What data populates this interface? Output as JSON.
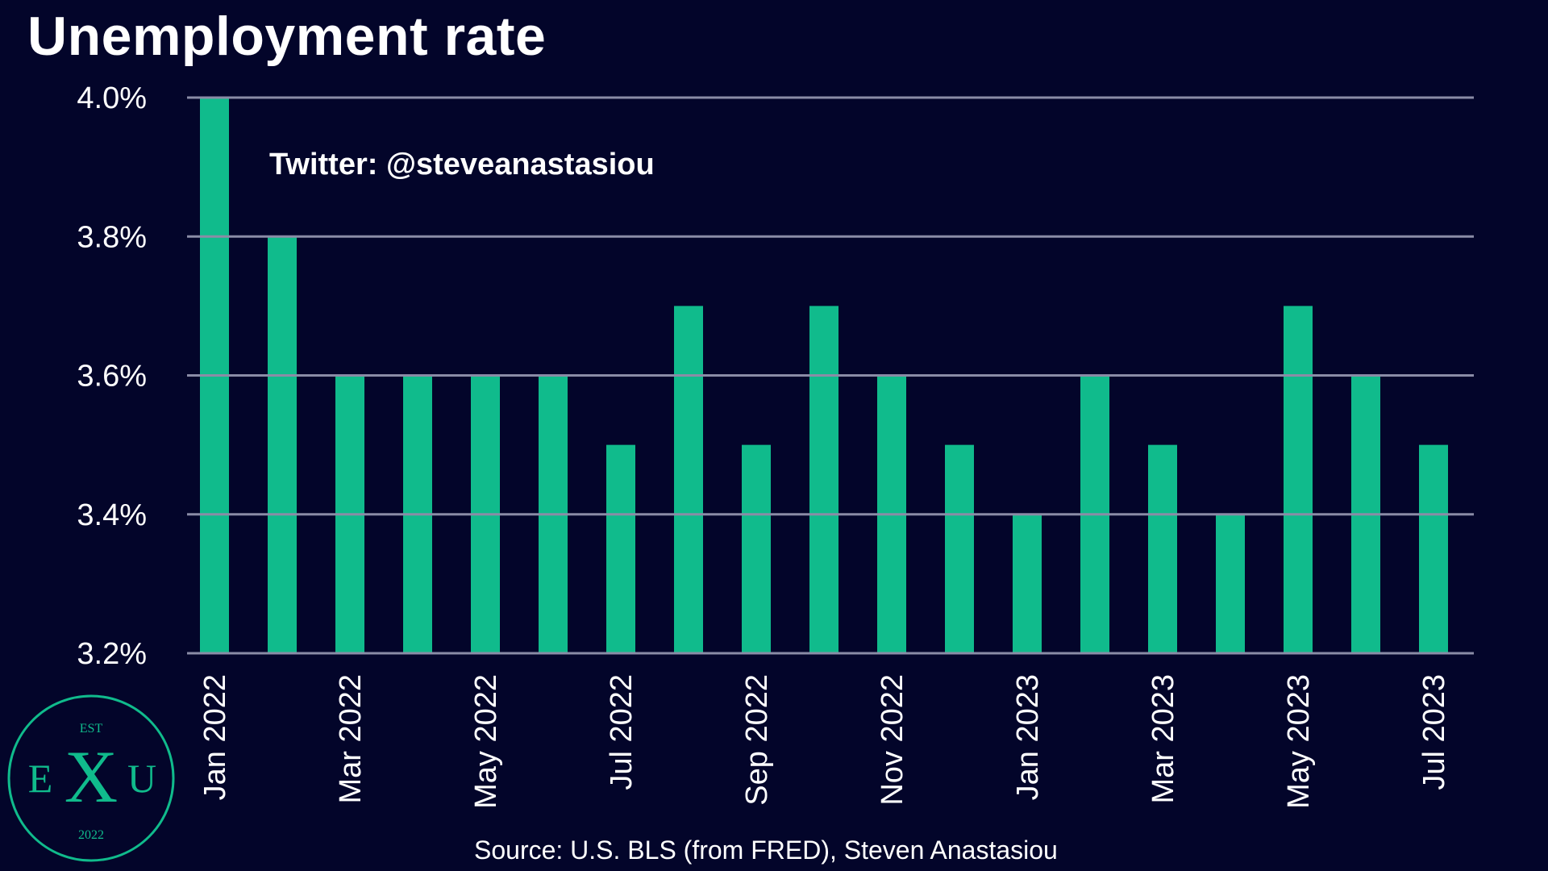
{
  "chart_data": {
    "type": "bar",
    "title": "Unemployment rate",
    "xlabel": "",
    "ylabel": "",
    "categories": [
      "Jan 2022",
      "Feb 2022",
      "Mar 2022",
      "Apr 2022",
      "May 2022",
      "Jun 2022",
      "Jul 2022",
      "Aug 2022",
      "Sep 2022",
      "Oct 2022",
      "Nov 2022",
      "Dec 2022",
      "Jan 2023",
      "Feb 2023",
      "Mar 2023",
      "Apr 2023",
      "May 2023",
      "Jun 2023",
      "Jul 2023"
    ],
    "values": [
      4.0,
      3.8,
      3.6,
      3.6,
      3.6,
      3.6,
      3.5,
      3.7,
      3.5,
      3.7,
      3.6,
      3.5,
      3.4,
      3.6,
      3.5,
      3.4,
      3.7,
      3.6,
      3.5
    ],
    "x_tick_labels": [
      "Jan 2022",
      "",
      "Mar 2022",
      "",
      "May 2022",
      "",
      "Jul 2022",
      "",
      "Sep 2022",
      "",
      "Nov 2022",
      "",
      "Jan 2023",
      "",
      "Mar 2023",
      "",
      "May 2023",
      "",
      "Jul 2023"
    ],
    "ylim": [
      3.2,
      4.0
    ],
    "y_ticks": [
      3.2,
      3.4,
      3.6,
      3.8,
      4.0
    ],
    "y_tick_labels": [
      "3.2%",
      "3.4%",
      "3.6%",
      "3.8%",
      "4.0%"
    ],
    "grid": true,
    "bar_color": "#10bb8c",
    "background_color": "#03052a",
    "grid_color": "#8a8ca6"
  },
  "watermark": "Twitter: @steveanastasiou",
  "source": "Source: U.S. BLS (from FRED), Steven Anastasiou",
  "logo": {
    "top_text": "EST",
    "left_letter": "E",
    "center_letter": "X",
    "right_letter": "U",
    "bottom_text": "2022",
    "color": "#10bb8c"
  }
}
